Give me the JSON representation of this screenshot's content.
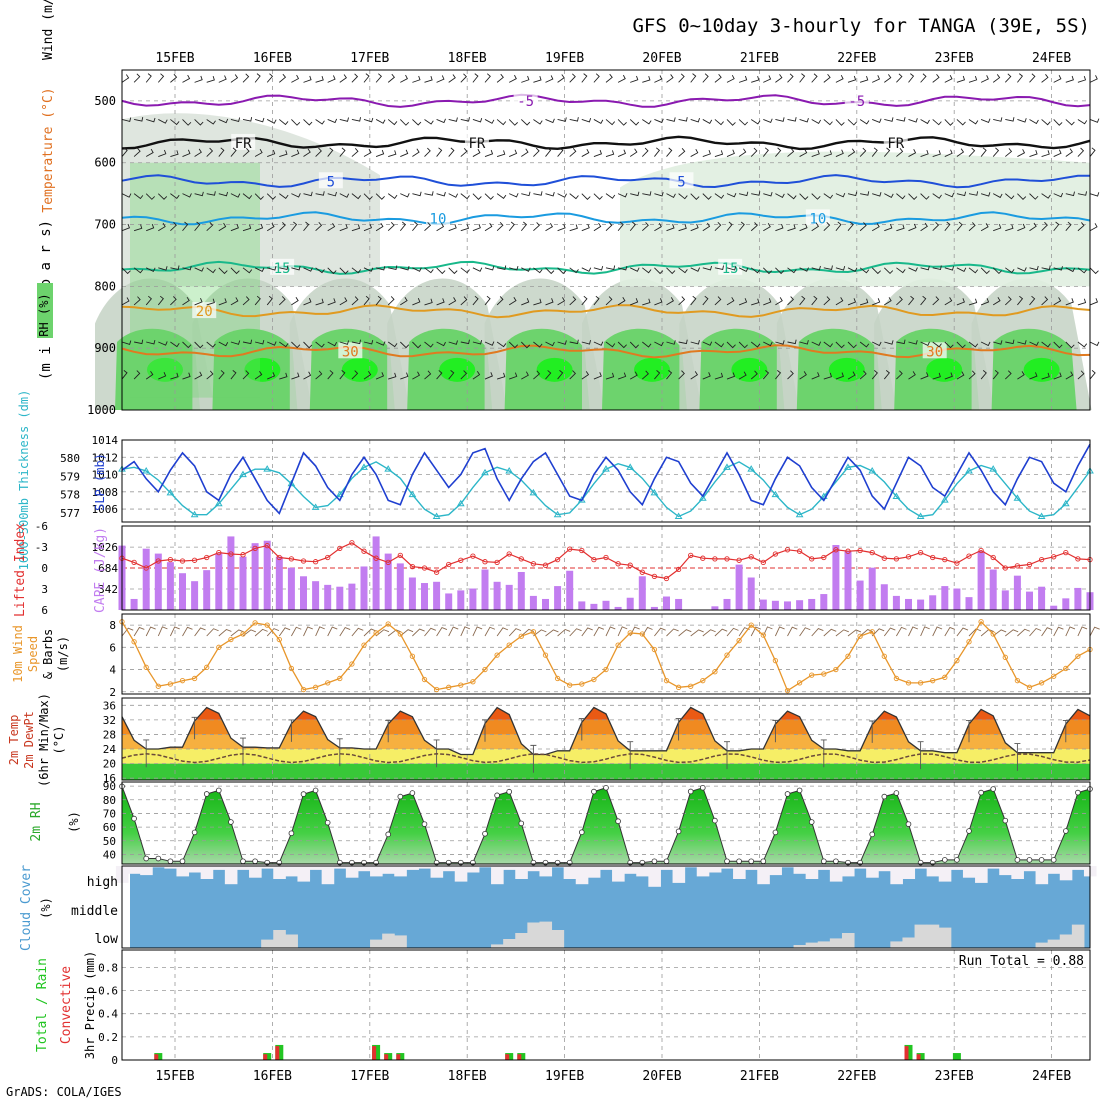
{
  "title": "GFS 0~10day 3-hourly for TANGA (39E, 5S)",
  "credit": "GrADS: COLA/IGES",
  "days": [
    "15FEB",
    "16FEB",
    "17FEB",
    "18FEB",
    "19FEB",
    "20FEB",
    "21FEB",
    "22FEB",
    "23FEB",
    "24FEB"
  ],
  "colors": {
    "grid": "#9a9a9a",
    "rh_light": "#e0eee0",
    "rh_mid": "#c4d2c4",
    "rh_green": "#6dd36d",
    "rh_bright": "#22ee22",
    "slp": "#1f3fd0",
    "thickness": "#2cb6c8",
    "cape": "#c27df0",
    "lifted": "#e23030",
    "wind10": "#e8962a",
    "cloud_blue": "#67a8d6",
    "cloud_white": "#f4f0f6",
    "cloud_gray": "#d8d8d8",
    "rain": "#22c522",
    "convective": "#e23030"
  },
  "chart_data": [
    {
      "type": "contour",
      "name": "upper-air",
      "ylabels": [
        "Temperature (°C)",
        "Wind (m/s)",
        "RH (%)",
        "(m i l l i b a r s)"
      ],
      "yticks": [
        500,
        600,
        700,
        800,
        900,
        1000
      ],
      "ylim": [
        450,
        1000
      ],
      "isotherms": [
        {
          "label": "-5",
          "level": 500,
          "color": "#8a1ab0",
          "label_days": [
            3.6,
            7.0
          ]
        },
        {
          "label": "FR",
          "level": 568,
          "color": "#111111",
          "label_days": [
            0.7,
            3.1,
            7.4
          ]
        },
        {
          "label": "5",
          "level": 630,
          "color": "#1f4fd8",
          "label_days": [
            1.6,
            5.2
          ]
        },
        {
          "label": "10",
          "level": 690,
          "color": "#1a9be0",
          "label_days": [
            2.7,
            6.6
          ]
        },
        {
          "label": "15",
          "level": 770,
          "color": "#18b88a",
          "label_days": [
            1.1,
            5.7
          ]
        },
        {
          "label": "20",
          "level": 840,
          "color": "#e09a20",
          "label_days": [
            0.3
          ]
        },
        {
          "label": "30",
          "level": 905,
          "color": "#e07a20",
          "label_days": [
            1.8,
            7.8
          ]
        }
      ]
    },
    {
      "type": "line",
      "name": "slp-thickness",
      "ylabel_left": "1000-500mb Thickness (dm)",
      "ylabel_right": "SLP (mb)",
      "left_ticks": [
        577,
        578,
        579,
        580
      ],
      "right_ticks": [
        1006,
        1008,
        1010,
        1012,
        1014
      ],
      "left_range": [
        576.5,
        581
      ],
      "right_range": [
        1004.5,
        1014
      ],
      "thickness_dm": [
        579.4,
        579.5,
        579.3,
        578.8,
        578.1,
        577.4,
        576.9,
        576.9,
        577.5,
        578.3,
        579.1,
        579.4,
        579.4,
        579.2,
        578.6,
        577.9,
        577.3,
        577.4,
        578.0,
        578.9,
        579.5,
        579.8,
        579.4,
        578.9,
        578.0,
        577.2,
        576.8,
        576.9,
        577.5,
        578.4,
        579.2,
        579.5,
        579.3,
        578.8,
        578.1,
        577.4,
        576.9,
        577.0,
        577.7,
        578.6,
        579.4,
        579.7,
        579.5,
        578.9,
        578.1,
        577.3,
        576.8,
        577.1,
        577.8,
        578.7,
        579.5,
        579.8,
        579.4,
        578.8,
        578.0,
        577.3,
        576.9,
        577.2,
        577.9,
        578.7,
        579.5,
        579.6,
        579.3,
        578.7,
        577.9,
        577.2,
        576.8,
        576.9,
        577.7,
        578.6,
        579.3,
        579.6,
        579.4,
        578.6,
        577.8,
        577.1,
        576.8,
        576.9,
        577.5,
        578.4,
        579.3
      ],
      "slp_mb": [
        1010.5,
        1011.5,
        1009.5,
        1008.0,
        1010.5,
        1012.5,
        1011.0,
        1008.0,
        1007.0,
        1010.0,
        1012.0,
        1009.5,
        1007.0,
        1005.5,
        1009.0,
        1012.5,
        1011.0,
        1008.5,
        1007.0,
        1010.0,
        1012.0,
        1010.0,
        1007.0,
        1006.5,
        1010.0,
        1012.5,
        1010.5,
        1008.5,
        1010.0,
        1012.5,
        1013.0,
        1009.5,
        1007.0,
        1009.5,
        1011.5,
        1012.5,
        1010.0,
        1007.5,
        1007.0,
        1010.0,
        1012.0,
        1010.5,
        1008.0,
        1006.5,
        1009.5,
        1012.0,
        1011.5,
        1009.0,
        1007.5,
        1010.0,
        1012.5,
        1010.0,
        1007.0,
        1006.5,
        1009.5,
        1012.0,
        1011.0,
        1008.5,
        1007.0,
        1009.5,
        1012.0,
        1010.5,
        1007.5,
        1006.0,
        1009.0,
        1012.0,
        1011.0,
        1008.5,
        1007.5,
        1010.0,
        1012.5,
        1010.5,
        1008.0,
        1006.5,
        1009.5,
        1012.0,
        1011.5,
        1009.0,
        1008.0,
        1011.0,
        1013.5
      ]
    },
    {
      "type": "bar",
      "name": "cape-lifted-index",
      "ylabel_left": "Lifted Index",
      "ylabel_right": "CAPE (J/kg)",
      "li_ticks": [
        "-6",
        "-3",
        "0",
        "3",
        "6"
      ],
      "cape_ticks": [
        342,
        684,
        1026
      ],
      "cape_max": 1370,
      "cape": [
        1050,
        180,
        1000,
        920,
        780,
        600,
        470,
        650,
        920,
        1200,
        870,
        1090,
        1130,
        870,
        690,
        550,
        470,
        410,
        380,
        430,
        710,
        1200,
        920,
        760,
        530,
        440,
        460,
        270,
        320,
        350,
        660,
        460,
        410,
        620,
        230,
        180,
        390,
        640,
        140,
        100,
        150,
        50,
        200,
        550,
        50,
        220,
        180,
        0,
        0,
        60,
        180,
        740,
        530,
        170,
        150,
        140,
        160,
        180,
        260,
        1060,
        960,
        480,
        690,
        420,
        230,
        180,
        170,
        240,
        390,
        350,
        210,
        960,
        660,
        320,
        560,
        300,
        380,
        70,
        190,
        360,
        290
      ],
      "lifted_index": [
        -1.4,
        -0.8,
        0.0,
        -1.0,
        -1.2,
        -1.0,
        -1.1,
        -1.5,
        -2.2,
        -2.0,
        -1.9,
        -2.8,
        -3.2,
        -1.5,
        -1.3,
        -1.0,
        -0.9,
        -1.5,
        -2.8,
        -3.6,
        -2.4,
        -1.4,
        -0.8,
        -1.8,
        -0.2,
        0.0,
        0.6,
        -0.5,
        -1.1,
        -1.7,
        -0.9,
        -0.8,
        -2.0,
        -1.3,
        -0.6,
        -0.4,
        -1.2,
        -2.7,
        -2.5,
        -1.2,
        -1.5,
        -0.6,
        -0.4,
        0.6,
        1.2,
        1.5,
        0.2,
        -1.8,
        -1.4,
        -1.3,
        -1.3,
        -1.1,
        -1.6,
        -0.8,
        -2.0,
        -2.6,
        -2.4,
        -1.3,
        -1.5,
        -2.6,
        -2.4,
        -2.5,
        -2.2,
        -1.4,
        -1.3,
        -1.6,
        -2.2,
        -1.5,
        -1.2,
        -0.7,
        -1.7,
        -2.5,
        -1.5,
        0.0,
        -0.3,
        -0.5,
        -1.2,
        -1.6,
        -2.2,
        -1.3,
        -1.2
      ]
    },
    {
      "type": "line",
      "name": "wind-10m",
      "ylabel": [
        "10m Wind",
        "Speed",
        "& Barbs",
        "(m/s)"
      ],
      "yticks": [
        2,
        4,
        6,
        8
      ],
      "ylim": [
        1.8,
        9.0
      ],
      "speed_ms": [
        8.3,
        6.5,
        4.2,
        2.5,
        2.7,
        3.0,
        3.2,
        4.2,
        6.0,
        6.7,
        7.2,
        8.2,
        8.0,
        6.7,
        4.1,
        2.2,
        2.4,
        2.8,
        3.2,
        4.5,
        6.2,
        7.3,
        8.1,
        7.2,
        5.2,
        3.1,
        2.2,
        2.4,
        2.6,
        2.9,
        4.0,
        5.3,
        6.2,
        7.0,
        7.4,
        5.3,
        3.2,
        2.6,
        2.7,
        3.1,
        4.0,
        6.2,
        7.3,
        7.2,
        5.8,
        3.0,
        2.4,
        2.5,
        3.0,
        3.8,
        5.3,
        6.6,
        8.0,
        7.1,
        4.8,
        2.1,
        2.8,
        3.5,
        3.6,
        4.0,
        5.2,
        7.0,
        7.4,
        5.2,
        3.2,
        2.8,
        2.8,
        3.0,
        3.3,
        4.8,
        6.5,
        8.3,
        7.2,
        5.1,
        3.0,
        2.4,
        2.8,
        3.4,
        4.1,
        5.2,
        5.8
      ]
    },
    {
      "type": "area",
      "name": "temp-2m",
      "ylabel": [
        "2m Temp",
        "2m DewPt",
        "(6hr Min/Max)",
        "(°C)"
      ],
      "yticks": [
        16,
        20,
        24,
        28,
        32,
        36
      ],
      "ylim": [
        15.5,
        38
      ],
      "daily_max": [
        34.5,
        35.5,
        34.5,
        34.5,
        35.5,
        35.5,
        35.5,
        34.5,
        34.5,
        35.0
      ],
      "daily_min": [
        24.0,
        24.5,
        24.3,
        24.0,
        22.5,
        23.5,
        23.5,
        24.0,
        23.5,
        23.0
      ],
      "dewpoint_mean": 21.5
    },
    {
      "type": "area",
      "name": "rh-2m",
      "ylabel": [
        "2m RH",
        "(%)"
      ],
      "yticks": [
        40,
        50,
        60,
        70,
        80,
        90
      ],
      "ylim": [
        33,
        93
      ],
      "daily_max": [
        92,
        89,
        89,
        87,
        88,
        91,
        91,
        89,
        87,
        90
      ],
      "daily_min": [
        37,
        35,
        34,
        34,
        34,
        34,
        35,
        35,
        34,
        36
      ]
    },
    {
      "type": "area",
      "name": "cloud-cover",
      "ylabel": [
        "Cloud Cover",
        "(%)"
      ],
      "layers": [
        "high",
        "middle",
        "low"
      ],
      "high_blue_fraction": [
        0.35,
        0.7,
        0.65,
        0.95,
        0.9,
        0.6,
        0.75,
        0.5,
        0.85,
        0.3,
        0.85,
        0.55,
        0.9,
        0.5,
        0.6,
        0.4,
        0.85,
        0.3,
        0.9,
        0.55,
        0.8,
        0.6,
        0.7,
        0.6,
        0.85,
        0.9,
        0.55,
        0.8,
        0.4,
        0.75,
        0.95,
        0.3,
        0.85,
        0.5,
        0.8,
        0.6,
        0.95,
        0.5,
        0.3,
        0.55,
        0.85,
        0.4,
        0.7,
        0.6,
        0.2,
        0.85,
        0.35,
        0.95,
        0.6,
        0.75,
        0.9,
        0.5,
        0.85,
        0.3,
        0.65,
        0.95,
        0.7,
        0.5,
        0.85,
        0.4,
        0.6,
        0.9,
        0.55,
        0.8,
        0.3,
        0.5,
        0.9,
        0.6,
        0.4,
        0.85,
        0.55,
        0.35,
        0.9,
        0.65,
        0.5,
        0.8,
        0.3,
        0.7,
        0.45,
        0.85,
        0.6
      ],
      "low_gray_fraction": [
        0,
        0,
        0,
        0,
        0,
        0,
        0,
        0,
        0,
        0,
        0,
        0,
        0.28,
        0.6,
        0.45,
        0,
        0,
        0,
        0,
        0,
        0,
        0.28,
        0.48,
        0.42,
        0,
        0,
        0,
        0,
        0,
        0,
        0,
        0.12,
        0.3,
        0.5,
        0.85,
        0.88,
        0.6,
        0,
        0,
        0,
        0,
        0,
        0,
        0,
        0,
        0,
        0,
        0,
        0,
        0,
        0,
        0,
        0,
        0,
        0,
        0,
        0.1,
        0.18,
        0.22,
        0.32,
        0.5,
        0,
        0,
        0,
        0.22,
        0.35,
        0.78,
        0.78,
        0.68,
        0,
        0,
        0,
        0,
        0,
        0,
        0,
        0.18,
        0.28,
        0.45,
        0.78,
        0
      ]
    },
    {
      "type": "bar",
      "name": "precip-3hr",
      "ylabel": [
        "Total / Rain",
        "Convective",
        "3hr Precip (mm)"
      ],
      "yticks": [
        "0",
        "0.2",
        "0.4",
        "0.6",
        "0.8"
      ],
      "ylim": [
        0,
        0.95
      ],
      "run_total_label": "Run Total = 0.88",
      "total": [
        0,
        0,
        0,
        0.06,
        0,
        0,
        0,
        0,
        0,
        0,
        0,
        0,
        0.06,
        0.13,
        0,
        0,
        0,
        0,
        0,
        0,
        0,
        0.13,
        0.06,
        0.06,
        0,
        0,
        0,
        0,
        0,
        0,
        0,
        0,
        0.06,
        0.06,
        0,
        0,
        0,
        0,
        0,
        0,
        0,
        0,
        0,
        0,
        0,
        0,
        0,
        0,
        0,
        0,
        0,
        0,
        0,
        0,
        0,
        0,
        0,
        0,
        0,
        0,
        0,
        0,
        0,
        0,
        0,
        0.13,
        0.06,
        0,
        0,
        0.06,
        0,
        0,
        0,
        0,
        0,
        0,
        0,
        0,
        0,
        0,
        0,
        0
      ],
      "convective": [
        0,
        0,
        0,
        0.05,
        0,
        0,
        0,
        0,
        0,
        0,
        0,
        0,
        0.05,
        0.12,
        0,
        0,
        0,
        0,
        0,
        0,
        0,
        0.12,
        0.05,
        0.05,
        0,
        0,
        0,
        0,
        0,
        0,
        0,
        0,
        0.05,
        0.05,
        0,
        0,
        0,
        0,
        0,
        0,
        0,
        0,
        0,
        0,
        0,
        0,
        0,
        0,
        0,
        0,
        0,
        0,
        0,
        0,
        0,
        0,
        0,
        0,
        0,
        0,
        0,
        0,
        0,
        0,
        0,
        0.12,
        0.05,
        0,
        0,
        0,
        0,
        0,
        0,
        0,
        0,
        0,
        0,
        0,
        0,
        0,
        0,
        0
      ]
    }
  ]
}
